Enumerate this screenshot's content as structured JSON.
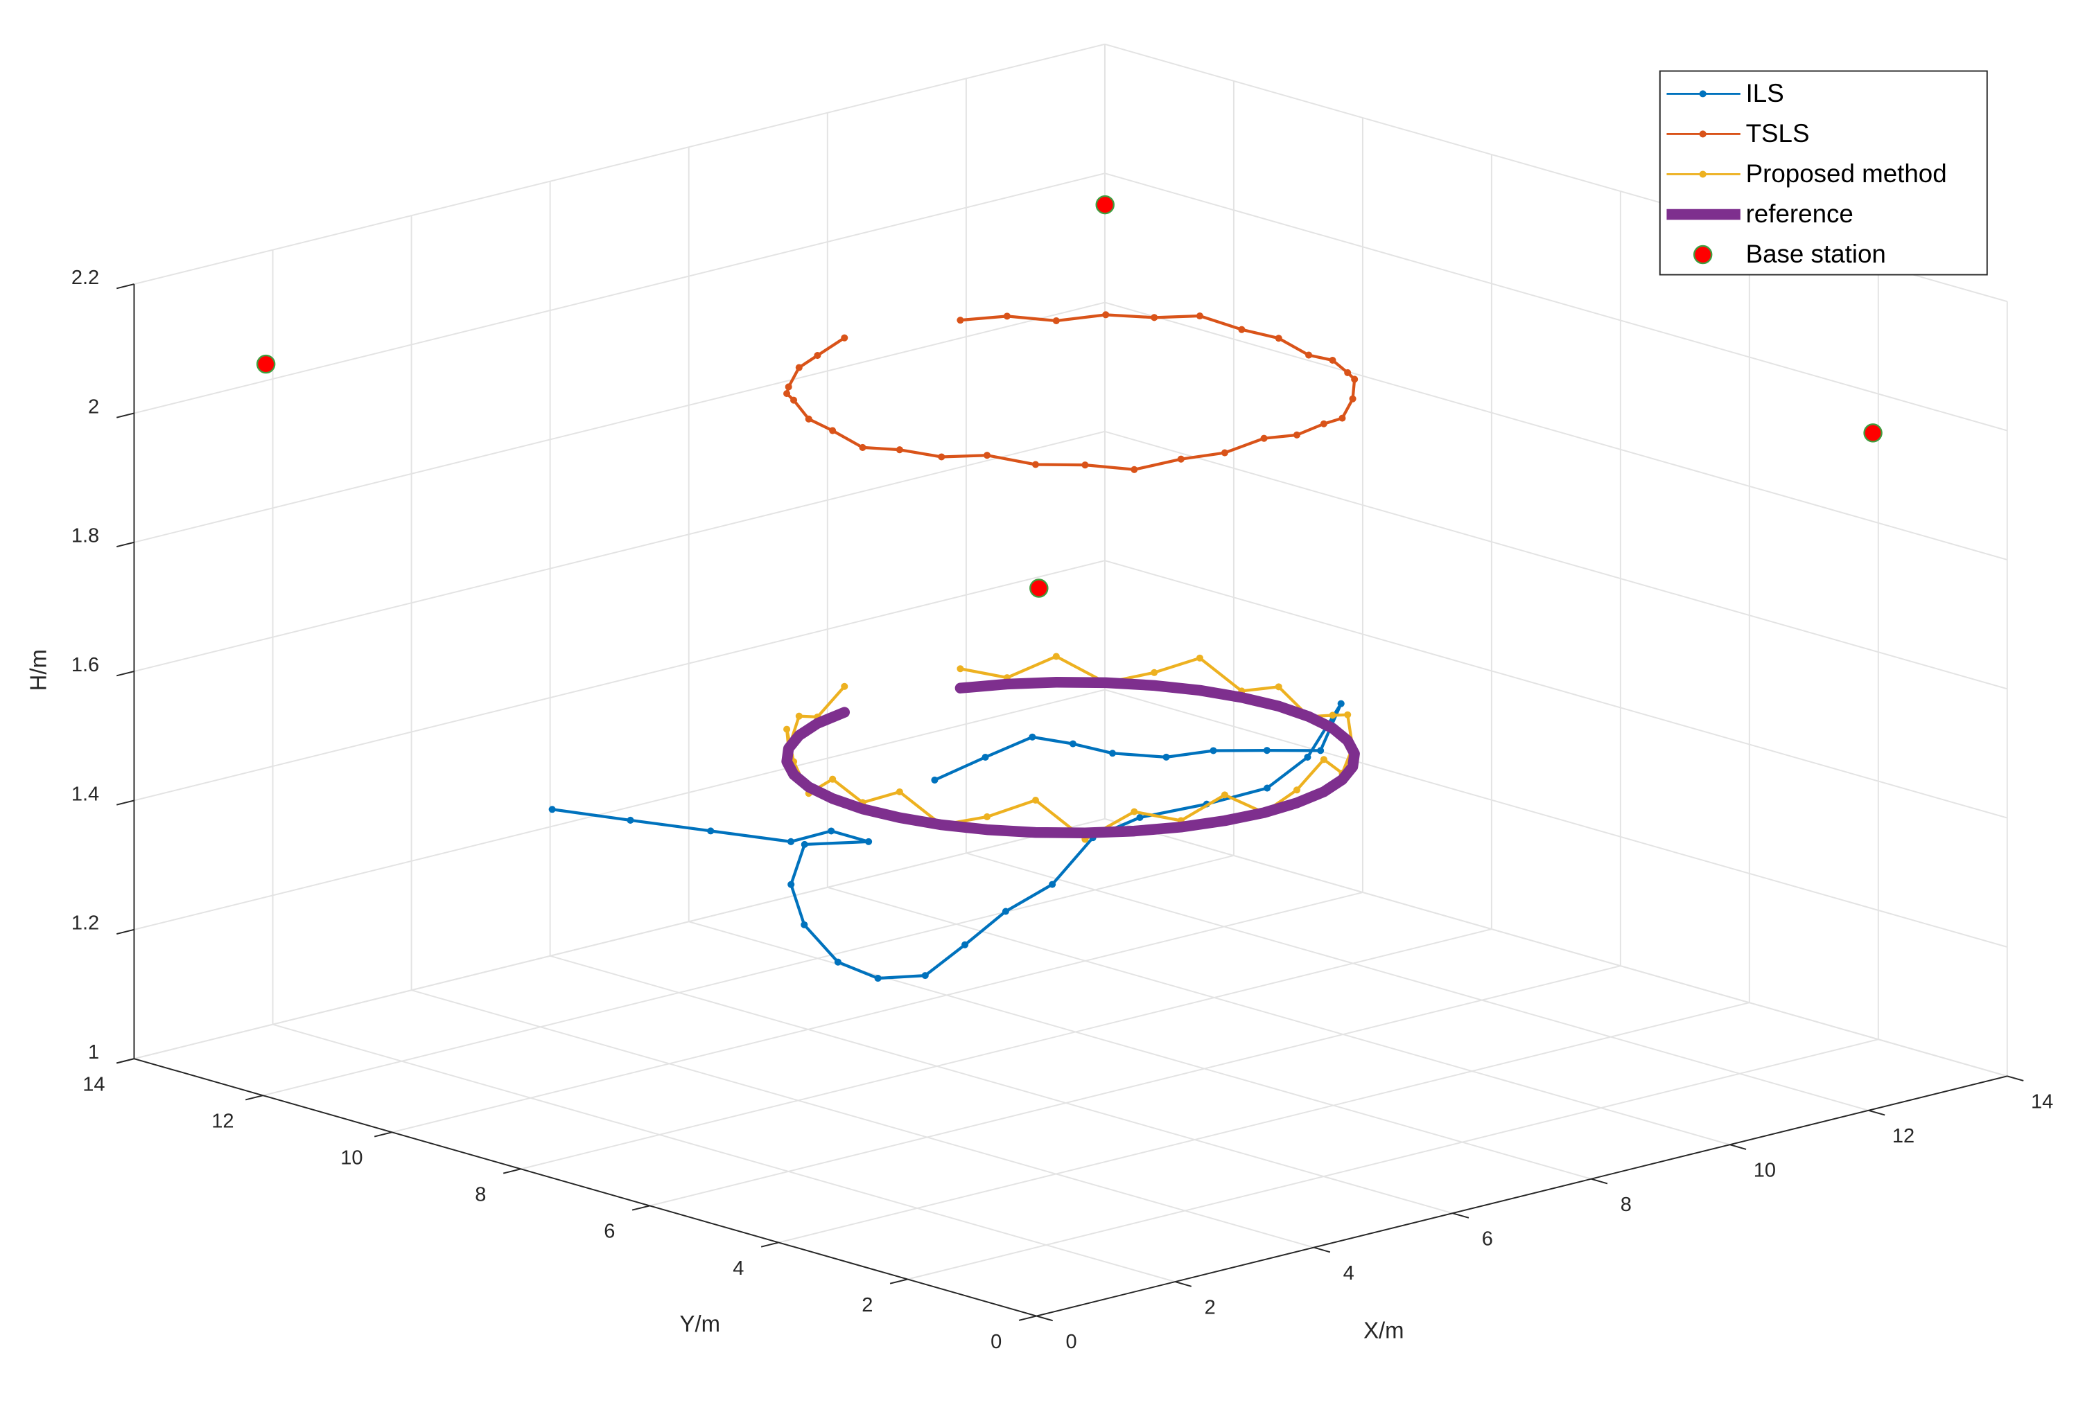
{
  "chart_data": {
    "type": "line3d",
    "xlabel": "X/m",
    "ylabel": "Y/m",
    "zlabel": "H/m",
    "xlim": [
      0,
      14
    ],
    "ylim": [
      0,
      14
    ],
    "zlim": [
      1,
      2.2
    ],
    "xticks": [
      0,
      2,
      4,
      6,
      8,
      10,
      12,
      14
    ],
    "yticks": [
      0,
      2,
      4,
      6,
      8,
      10,
      12,
      14
    ],
    "zticks": [
      1,
      1.2,
      1.4,
      1.6,
      1.8,
      2,
      2.2
    ],
    "grid": true,
    "legend": "upper right",
    "series": [
      {
        "name": "ILS",
        "color": "#0072BD",
        "style": "line-dots",
        "x": [
          2.99,
          3.3,
          3.63,
          3.96,
          4.56,
          4.56,
          3.99,
          2.8,
          1.81,
          1.06,
          0.93,
          1.37,
          2.51,
          3.73,
          4.82,
          6.4,
          7.31,
          8.19,
          9.09,
          10.24,
          11.95,
          10.52,
          10.11,
          9.69,
          9.15,
          8.84,
          8.79,
          8.66,
          7.75,
          6.74
        ],
        "y": [
          10.73,
          9.85,
          8.96,
          8.07,
          8.09,
          7.51,
          7.89,
          6.82,
          5.55,
          4.22,
          3.46,
          3.2,
          3.81,
          4.49,
          4.94,
          6.01,
          6.26,
          6.17,
          6.2,
          6.81,
          8.13,
          6.91,
          7.3,
          7.68,
          7.83,
          8.33,
          8.89,
          9.38,
          9.13,
          8.83
        ],
        "z": [
          1.4,
          1.4,
          1.4,
          1.4,
          1.4,
          1.4,
          1.4,
          1.4,
          1.4,
          1.4,
          1.4,
          1.4,
          1.4,
          1.4,
          1.4,
          1.4,
          1.4,
          1.4,
          1.4,
          1.4,
          1.4,
          1.4,
          1.4,
          1.4,
          1.4,
          1.4,
          1.4,
          1.4,
          1.4,
          1.4
        ]
      },
      {
        "name": "TSLS",
        "color": "#D95319",
        "style": "line-dots",
        "x": [
          6.48,
          5.97,
          5.5,
          5.07,
          4.7,
          4.4,
          4.18,
          4.05,
          4,
          4.05,
          4.18,
          4.4,
          4.7,
          5.07,
          5.5,
          5.97,
          6.48,
          7,
          7.52,
          8.03,
          8.5,
          8.93,
          9.3,
          9.6,
          9.82,
          9.95,
          10,
          9.95,
          9.82,
          9.6,
          9.3,
          8.93,
          8.5,
          8.03
        ],
        "y": [
          9.95,
          9.82,
          9.6,
          9.3,
          8.93,
          8.5,
          8.03,
          7.52,
          7,
          6.48,
          5.97,
          5.5,
          5.07,
          4.7,
          4.4,
          4.18,
          4.05,
          4,
          4.05,
          4.18,
          4.4,
          4.7,
          5.07,
          5.5,
          5.97,
          6.48,
          7,
          7.52,
          8.03,
          8.5,
          8.93,
          9.3,
          9.6,
          9.82
        ],
        "z": [
          2.06,
          2.05,
          2.05,
          2.04,
          2.05,
          2.06,
          2.05,
          2.05,
          2.04,
          2.05,
          2.05,
          2.06,
          2.05,
          2.05,
          2.04,
          2.05,
          2.05,
          2.06,
          2.05,
          2.05,
          2.04,
          2.05,
          2.06,
          2.05,
          2.05,
          2.04,
          2.05,
          2.05,
          2.06,
          2.05,
          2.05,
          2.04,
          2.05,
          2.05
        ]
      },
      {
        "name": "Proposed method",
        "color": "#EDB120",
        "style": "line-dots",
        "x": [
          6.48,
          5.97,
          5.5,
          5.07,
          4.7,
          4.4,
          4.18,
          4.05,
          4,
          4.05,
          4.18,
          4.4,
          4.7,
          5.07,
          5.5,
          5.97,
          6.48,
          7,
          7.52,
          8.03,
          8.5,
          8.93,
          9.3,
          9.6,
          9.82,
          9.95,
          10,
          9.95,
          9.82,
          9.6,
          9.3,
          8.93,
          8.5,
          8.03
        ],
        "y": [
          9.95,
          9.82,
          9.6,
          9.3,
          8.93,
          8.5,
          8.03,
          7.52,
          7,
          6.48,
          5.97,
          5.5,
          5.07,
          4.7,
          4.4,
          4.18,
          4.05,
          4,
          4.05,
          4.18,
          4.4,
          4.7,
          5.07,
          5.5,
          5.97,
          6.48,
          7,
          7.52,
          8.03,
          8.5,
          8.93,
          9.3,
          9.6,
          9.82
        ],
        "z": [
          1.52,
          1.49,
          1.51,
          1.48,
          1.53,
          1.5,
          1.47,
          1.51,
          1.49,
          1.52,
          1.48,
          1.5,
          1.53,
          1.47,
          1.51,
          1.49,
          1.52,
          1.48,
          1.5,
          1.53,
          1.49,
          1.51,
          1.47,
          1.52,
          1.5,
          1.48,
          1.51,
          1.49,
          1.53,
          1.5,
          1.48,
          1.52,
          1.49,
          1.51
        ]
      },
      {
        "name": "reference",
        "color": "#7E2F8E",
        "style": "thick-line",
        "x": [
          6.48,
          5.97,
          5.5,
          5.07,
          4.7,
          4.4,
          4.18,
          4.05,
          4,
          4.05,
          4.18,
          4.4,
          4.7,
          5.07,
          5.5,
          5.97,
          6.48,
          7,
          7.52,
          8.03,
          8.5,
          8.93,
          9.3,
          9.6,
          9.82,
          9.95,
          10,
          9.95,
          9.82,
          9.6,
          9.3,
          8.93,
          8.5,
          8.03
        ],
        "y": [
          9.95,
          9.82,
          9.6,
          9.3,
          8.93,
          8.5,
          8.03,
          7.52,
          7,
          6.48,
          5.97,
          5.5,
          5.07,
          4.7,
          4.4,
          4.18,
          4.05,
          4,
          4.05,
          4.18,
          4.4,
          4.7,
          5.07,
          5.5,
          5.97,
          6.48,
          7,
          7.52,
          8.03,
          8.5,
          8.93,
          9.3,
          9.6,
          9.82
        ],
        "z": [
          1.48,
          1.48,
          1.48,
          1.48,
          1.48,
          1.48,
          1.48,
          1.48,
          1.48,
          1.48,
          1.48,
          1.48,
          1.48,
          1.48,
          1.48,
          1.48,
          1.48,
          1.48,
          1.48,
          1.48,
          1.48,
          1.48,
          1.48,
          1.48,
          1.48,
          1.48,
          1.48,
          1.48,
          1.48,
          1.48,
          1.48,
          1.48,
          1.48,
          1.48
        ]
      },
      {
        "name": "Base station",
        "color": "#FF0000",
        "edgecolor": "#3F9E3F",
        "style": "markers",
        "x": [
          0.5,
          0.6,
          11.4,
          12.9
        ],
        "y": [
          0.5,
          12.6,
          11.2,
          0.9
        ],
        "z": [
          2.1,
          2.1,
          2.1,
          2.0
        ]
      }
    ]
  }
}
